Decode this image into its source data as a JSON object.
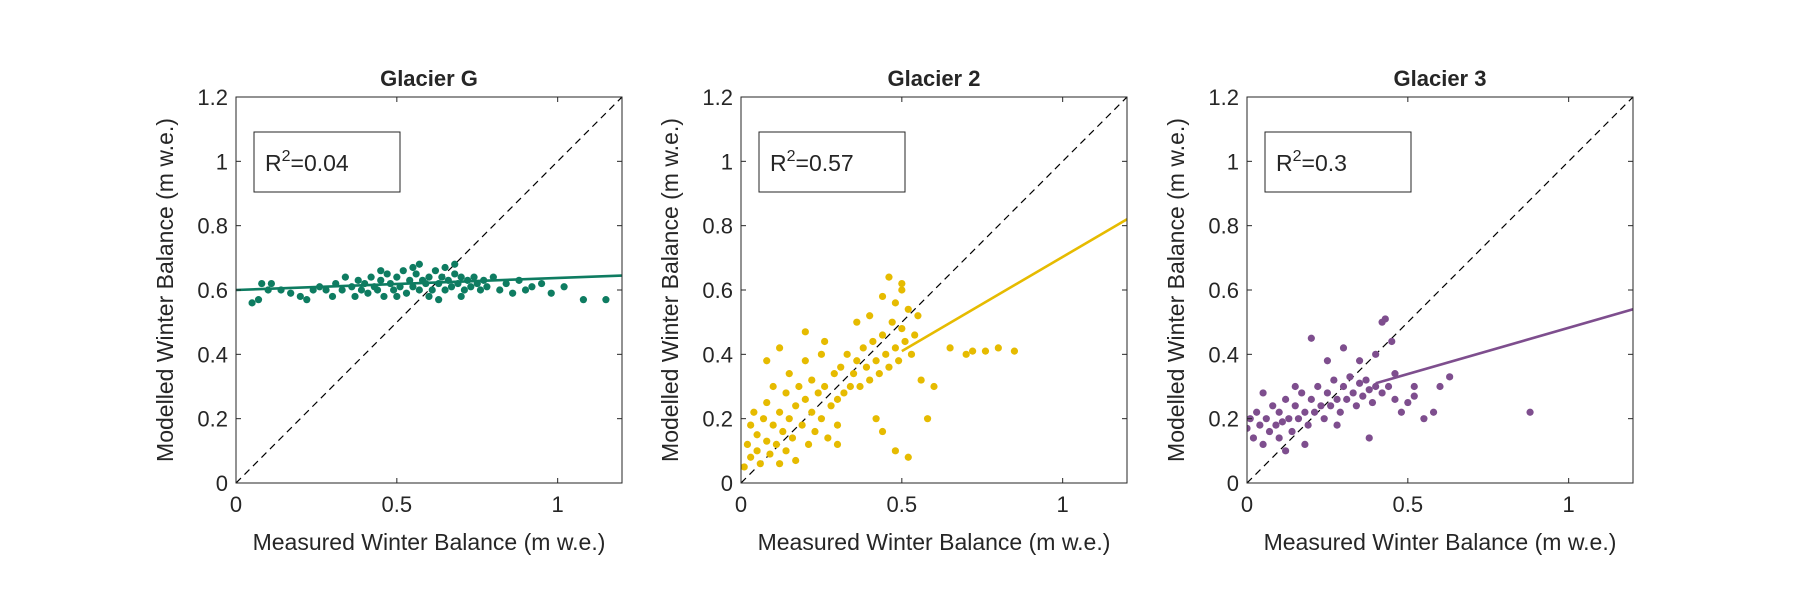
{
  "chart_data": [
    {
      "type": "scatter",
      "title": "Glacier G",
      "xlabel": "Measured Winter Balance (m w.e.)",
      "ylabel": "Modelled Winter Balance (m w.e.)",
      "xlim": [
        0,
        1.2
      ],
      "ylim": [
        0,
        1.2
      ],
      "xticks": [
        0,
        0.5,
        1
      ],
      "xtick_labels": [
        "0",
        "0.5",
        "1"
      ],
      "yticks": [
        0,
        0.2,
        0.4,
        0.6,
        0.8,
        1,
        1.2
      ],
      "ytick_labels": [
        "0",
        "0.2",
        "0.4",
        "0.6",
        "0.8",
        "1",
        "1.2"
      ],
      "grid": false,
      "color": "#0e7c61",
      "r2_label": "0.04",
      "fit_line": {
        "x": [
          0,
          1.2
        ],
        "y": [
          0.6,
          0.645
        ]
      },
      "reference_line": {
        "x": [
          0,
          1.2
        ],
        "y": [
          0,
          1.2
        ],
        "style": "dashed",
        "color": "#000000"
      },
      "points": [
        [
          0.05,
          0.56
        ],
        [
          0.07,
          0.57
        ],
        [
          0.08,
          0.62
        ],
        [
          0.1,
          0.6
        ],
        [
          0.11,
          0.62
        ],
        [
          0.14,
          0.6
        ],
        [
          0.17,
          0.59
        ],
        [
          0.2,
          0.58
        ],
        [
          0.22,
          0.57
        ],
        [
          0.24,
          0.6
        ],
        [
          0.26,
          0.61
        ],
        [
          0.28,
          0.6
        ],
        [
          0.3,
          0.58
        ],
        [
          0.31,
          0.62
        ],
        [
          0.33,
          0.6
        ],
        [
          0.34,
          0.64
        ],
        [
          0.36,
          0.61
        ],
        [
          0.37,
          0.58
        ],
        [
          0.38,
          0.63
        ],
        [
          0.39,
          0.6
        ],
        [
          0.4,
          0.62
        ],
        [
          0.41,
          0.59
        ],
        [
          0.42,
          0.64
        ],
        [
          0.43,
          0.61
        ],
        [
          0.44,
          0.6
        ],
        [
          0.45,
          0.63
        ],
        [
          0.46,
          0.58
        ],
        [
          0.47,
          0.65
        ],
        [
          0.48,
          0.62
        ],
        [
          0.49,
          0.6
        ],
        [
          0.5,
          0.64
        ],
        [
          0.51,
          0.61
        ],
        [
          0.52,
          0.66
        ],
        [
          0.53,
          0.59
        ],
        [
          0.54,
          0.63
        ],
        [
          0.55,
          0.61
        ],
        [
          0.56,
          0.65
        ],
        [
          0.57,
          0.6
        ],
        [
          0.58,
          0.63
        ],
        [
          0.59,
          0.62
        ],
        [
          0.6,
          0.64
        ],
        [
          0.61,
          0.6
        ],
        [
          0.62,
          0.66
        ],
        [
          0.63,
          0.62
        ],
        [
          0.64,
          0.64
        ],
        [
          0.65,
          0.6
        ],
        [
          0.66,
          0.63
        ],
        [
          0.67,
          0.61
        ],
        [
          0.68,
          0.65
        ],
        [
          0.69,
          0.62
        ],
        [
          0.7,
          0.64
        ],
        [
          0.71,
          0.6
        ],
        [
          0.72,
          0.63
        ],
        [
          0.73,
          0.61
        ],
        [
          0.74,
          0.64
        ],
        [
          0.75,
          0.62
        ],
        [
          0.76,
          0.6
        ],
        [
          0.77,
          0.63
        ],
        [
          0.78,
          0.61
        ],
        [
          0.8,
          0.64
        ],
        [
          0.82,
          0.6
        ],
        [
          0.84,
          0.62
        ],
        [
          0.86,
          0.59
        ],
        [
          0.88,
          0.63
        ],
        [
          0.9,
          0.6
        ],
        [
          0.92,
          0.61
        ],
        [
          0.95,
          0.62
        ],
        [
          0.98,
          0.59
        ],
        [
          1.02,
          0.61
        ],
        [
          1.08,
          0.57
        ],
        [
          1.15,
          0.57
        ],
        [
          0.55,
          0.67
        ],
        [
          0.6,
          0.58
        ],
        [
          0.65,
          0.67
        ],
        [
          0.7,
          0.58
        ],
        [
          0.5,
          0.58
        ],
        [
          0.45,
          0.66
        ],
        [
          0.57,
          0.68
        ],
        [
          0.63,
          0.57
        ],
        [
          0.68,
          0.68
        ]
      ]
    },
    {
      "type": "scatter",
      "title": "Glacier 2",
      "xlabel": "Measured Winter Balance (m w.e.)",
      "ylabel": "Modelled Winter Balance (m w.e.)",
      "xlim": [
        0,
        1.2
      ],
      "ylim": [
        0,
        1.2
      ],
      "xticks": [
        0,
        0.5,
        1
      ],
      "xtick_labels": [
        "0",
        "0.5",
        "1"
      ],
      "yticks": [
        0,
        0.2,
        0.4,
        0.6,
        0.8,
        1,
        1.2
      ],
      "ytick_labels": [
        "0",
        "0.2",
        "0.4",
        "0.6",
        "0.8",
        "1",
        "1.2"
      ],
      "grid": false,
      "color": "#e6bb00",
      "r2_label": "0.57",
      "fit_line": {
        "x": [
          0.5,
          1.2
        ],
        "y": [
          0.41,
          0.82
        ]
      },
      "reference_line": {
        "x": [
          0,
          1.2
        ],
        "y": [
          0,
          1.2
        ],
        "style": "dashed",
        "color": "#000000"
      },
      "points": [
        [
          0.01,
          0.05
        ],
        [
          0.02,
          0.12
        ],
        [
          0.03,
          0.18
        ],
        [
          0.03,
          0.08
        ],
        [
          0.04,
          0.22
        ],
        [
          0.05,
          0.1
        ],
        [
          0.05,
          0.15
        ],
        [
          0.06,
          0.06
        ],
        [
          0.07,
          0.2
        ],
        [
          0.08,
          0.13
        ],
        [
          0.08,
          0.25
        ],
        [
          0.09,
          0.09
        ],
        [
          0.1,
          0.18
        ],
        [
          0.1,
          0.3
        ],
        [
          0.11,
          0.12
        ],
        [
          0.12,
          0.22
        ],
        [
          0.12,
          0.06
        ],
        [
          0.13,
          0.16
        ],
        [
          0.14,
          0.28
        ],
        [
          0.14,
          0.1
        ],
        [
          0.15,
          0.2
        ],
        [
          0.15,
          0.34
        ],
        [
          0.16,
          0.14
        ],
        [
          0.17,
          0.24
        ],
        [
          0.17,
          0.07
        ],
        [
          0.18,
          0.3
        ],
        [
          0.19,
          0.18
        ],
        [
          0.2,
          0.26
        ],
        [
          0.2,
          0.38
        ],
        [
          0.21,
          0.12
        ],
        [
          0.22,
          0.22
        ],
        [
          0.22,
          0.32
        ],
        [
          0.23,
          0.16
        ],
        [
          0.24,
          0.28
        ],
        [
          0.25,
          0.2
        ],
        [
          0.25,
          0.4
        ],
        [
          0.26,
          0.3
        ],
        [
          0.27,
          0.14
        ],
        [
          0.28,
          0.24
        ],
        [
          0.29,
          0.34
        ],
        [
          0.3,
          0.26
        ],
        [
          0.3,
          0.18
        ],
        [
          0.31,
          0.36
        ],
        [
          0.32,
          0.28
        ],
        [
          0.33,
          0.4
        ],
        [
          0.34,
          0.3
        ],
        [
          0.35,
          0.34
        ],
        [
          0.36,
          0.38
        ],
        [
          0.37,
          0.3
        ],
        [
          0.38,
          0.42
        ],
        [
          0.39,
          0.36
        ],
        [
          0.4,
          0.32
        ],
        [
          0.41,
          0.44
        ],
        [
          0.42,
          0.38
        ],
        [
          0.43,
          0.34
        ],
        [
          0.44,
          0.46
        ],
        [
          0.45,
          0.4
        ],
        [
          0.46,
          0.36
        ],
        [
          0.47,
          0.5
        ],
        [
          0.48,
          0.42
        ],
        [
          0.48,
          0.56
        ],
        [
          0.49,
          0.38
        ],
        [
          0.5,
          0.48
        ],
        [
          0.5,
          0.6
        ],
        [
          0.51,
          0.44
        ],
        [
          0.52,
          0.54
        ],
        [
          0.53,
          0.4
        ],
        [
          0.54,
          0.46
        ],
        [
          0.55,
          0.52
        ],
        [
          0.46,
          0.64
        ],
        [
          0.5,
          0.62
        ],
        [
          0.44,
          0.58
        ],
        [
          0.36,
          0.5
        ],
        [
          0.4,
          0.52
        ],
        [
          0.26,
          0.44
        ],
        [
          0.2,
          0.47
        ],
        [
          0.12,
          0.42
        ],
        [
          0.08,
          0.38
        ],
        [
          0.3,
          0.12
        ],
        [
          0.42,
          0.2
        ],
        [
          0.48,
          0.1
        ],
        [
          0.52,
          0.08
        ],
        [
          0.56,
          0.32
        ],
        [
          0.6,
          0.3
        ],
        [
          0.65,
          0.42
        ],
        [
          0.7,
          0.4
        ],
        [
          0.72,
          0.41
        ],
        [
          0.76,
          0.41
        ],
        [
          0.8,
          0.42
        ],
        [
          0.85,
          0.41
        ],
        [
          0.58,
          0.2
        ],
        [
          0.44,
          0.16
        ]
      ]
    },
    {
      "type": "scatter",
      "title": "Glacier 3",
      "xlabel": "Measured Winter Balance (m w.e.)",
      "ylabel": "Modelled Winter Balance (m w.e.)",
      "xlim": [
        0,
        1.2
      ],
      "ylim": [
        0,
        1.2
      ],
      "xticks": [
        0,
        0.5,
        1
      ],
      "xtick_labels": [
        "0",
        "0.5",
        "1"
      ],
      "yticks": [
        0,
        0.2,
        0.4,
        0.6,
        0.8,
        1,
        1.2
      ],
      "ytick_labels": [
        "0",
        "0.2",
        "0.4",
        "0.6",
        "0.8",
        "1",
        "1.2"
      ],
      "grid": false,
      "color": "#7e4e8e",
      "r2_label": "0.3",
      "fit_line": {
        "x": [
          0.4,
          1.2
        ],
        "y": [
          0.31,
          0.54
        ]
      },
      "reference_line": {
        "x": [
          0,
          1.2
        ],
        "y": [
          0,
          1.2
        ],
        "style": "dashed",
        "color": "#000000"
      },
      "points": [
        [
          0.0,
          0.17
        ],
        [
          0.01,
          0.2
        ],
        [
          0.02,
          0.14
        ],
        [
          0.03,
          0.22
        ],
        [
          0.04,
          0.18
        ],
        [
          0.05,
          0.12
        ],
        [
          0.06,
          0.2
        ],
        [
          0.07,
          0.16
        ],
        [
          0.08,
          0.24
        ],
        [
          0.09,
          0.18
        ],
        [
          0.1,
          0.14
        ],
        [
          0.1,
          0.22
        ],
        [
          0.11,
          0.19
        ],
        [
          0.12,
          0.26
        ],
        [
          0.13,
          0.2
        ],
        [
          0.14,
          0.16
        ],
        [
          0.15,
          0.24
        ],
        [
          0.16,
          0.2
        ],
        [
          0.17,
          0.28
        ],
        [
          0.18,
          0.22
        ],
        [
          0.19,
          0.18
        ],
        [
          0.2,
          0.26
        ],
        [
          0.21,
          0.22
        ],
        [
          0.22,
          0.3
        ],
        [
          0.23,
          0.24
        ],
        [
          0.24,
          0.2
        ],
        [
          0.25,
          0.28
        ],
        [
          0.26,
          0.24
        ],
        [
          0.27,
          0.32
        ],
        [
          0.28,
          0.26
        ],
        [
          0.29,
          0.22
        ],
        [
          0.3,
          0.3
        ],
        [
          0.31,
          0.26
        ],
        [
          0.32,
          0.33
        ],
        [
          0.33,
          0.28
        ],
        [
          0.34,
          0.24
        ],
        [
          0.35,
          0.31
        ],
        [
          0.36,
          0.27
        ],
        [
          0.37,
          0.32
        ],
        [
          0.38,
          0.29
        ],
        [
          0.39,
          0.25
        ],
        [
          0.4,
          0.3
        ],
        [
          0.42,
          0.28
        ],
        [
          0.44,
          0.3
        ],
        [
          0.46,
          0.26
        ],
        [
          0.42,
          0.5
        ],
        [
          0.43,
          0.51
        ],
        [
          0.45,
          0.44
        ],
        [
          0.4,
          0.4
        ],
        [
          0.3,
          0.42
        ],
        [
          0.2,
          0.45
        ],
        [
          0.25,
          0.38
        ],
        [
          0.35,
          0.38
        ],
        [
          0.15,
          0.3
        ],
        [
          0.05,
          0.28
        ],
        [
          0.48,
          0.22
        ],
        [
          0.5,
          0.25
        ],
        [
          0.52,
          0.27
        ],
        [
          0.55,
          0.2
        ],
        [
          0.58,
          0.22
        ],
        [
          0.6,
          0.3
        ],
        [
          0.63,
          0.33
        ],
        [
          0.52,
          0.3
        ],
        [
          0.46,
          0.34
        ],
        [
          0.88,
          0.22
        ],
        [
          0.38,
          0.14
        ],
        [
          0.28,
          0.18
        ],
        [
          0.18,
          0.12
        ],
        [
          0.12,
          0.1
        ]
      ]
    }
  ]
}
